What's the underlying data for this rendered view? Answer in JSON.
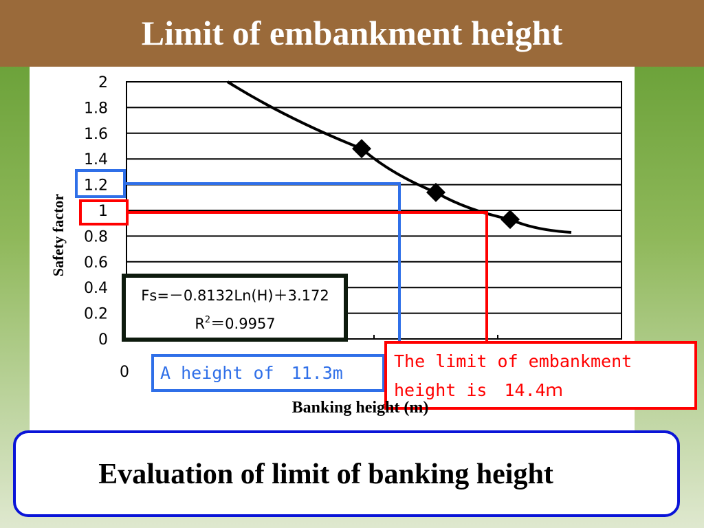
{
  "slide": {
    "title": "Limit of embankment height",
    "bottom_text": "Evaluation of limit of banking height"
  },
  "chart_data": {
    "type": "scatter",
    "title": "",
    "xlabel": "Banking height (m)",
    "ylabel": "Safety factor",
    "ylim": [
      0,
      2
    ],
    "y_ticks": [
      "0",
      "0.2",
      "0.4",
      "0.6",
      "0.8",
      "1",
      "1.2",
      "1.4",
      "1.6",
      "1.8",
      "2"
    ],
    "x_tick_labels": [
      "0"
    ],
    "grid": true,
    "points": [
      {
        "x": 9.5,
        "y": 1.48
      },
      {
        "x": 12.5,
        "y": 1.14
      },
      {
        "x": 15.5,
        "y": 0.93
      }
    ],
    "trendline": {
      "equation": "Fs=－0.8132Ln(H)＋3.172",
      "r2_label": "R",
      "r2_sup": "2",
      "r2_value": "＝0.9957"
    },
    "annotations": [
      {
        "text": "A height of　11.3m",
        "color": "#2f6fe8"
      },
      {
        "text": "The limit of embankment",
        "text2": "height is　14.4ｍ",
        "color": "#ff0000"
      }
    ]
  },
  "colors": {
    "title_bar": "#9a6a3a",
    "blue_annotation": "#2f6fe8",
    "red_annotation": "#ff0000",
    "bottom_border": "#0a14d8"
  }
}
